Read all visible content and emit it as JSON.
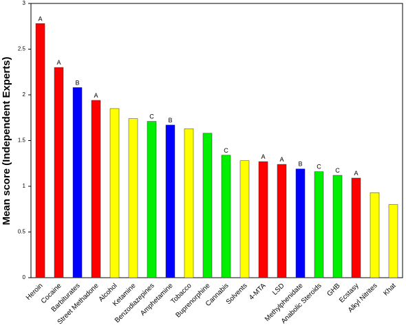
{
  "chart_data": {
    "type": "bar",
    "y_label": "Mean score (Independent Experts)",
    "categories": [
      "Heroin",
      "Cocaine",
      "Barbiturates",
      "Street Methadone",
      "Alcohol",
      "Ketamine",
      "Benzodiazepines",
      "Amphetamine",
      "Tobacco",
      "Buprenorphine",
      "Cannabis",
      "Solvents",
      "4-MTA",
      "LSD",
      "Methylphenidate",
      "Anabolic Steroids",
      "GHB",
      "Ecstasy",
      "Alkyl Nitrites",
      "Khat"
    ],
    "values": [
      2.78,
      2.3,
      2.08,
      1.94,
      1.85,
      1.74,
      1.71,
      1.67,
      1.63,
      1.58,
      1.34,
      1.28,
      1.27,
      1.24,
      1.19,
      1.16,
      1.12,
      1.09,
      0.93,
      0.8
    ],
    "colors": [
      "#ff0000",
      "#ff0000",
      "#0000ff",
      "#ff0000",
      "#ffff00",
      "#ffff00",
      "#00ee00",
      "#0000ff",
      "#ffff00",
      "#00ee00",
      "#00ee00",
      "#ffff00",
      "#ff0000",
      "#ff0000",
      "#0000ff",
      "#00ee00",
      "#00ee00",
      "#ff0000",
      "#ffff00",
      "#ffff00"
    ],
    "letters": [
      "A",
      "A",
      "B",
      "A",
      null,
      null,
      "C",
      "B",
      null,
      null,
      "C",
      null,
      "A",
      "A",
      "B",
      "C",
      "C",
      "A",
      null,
      null
    ],
    "ylim": [
      0,
      3
    ],
    "yticks": [
      0,
      0.5,
      1,
      1.5,
      2,
      2.5,
      3
    ]
  }
}
